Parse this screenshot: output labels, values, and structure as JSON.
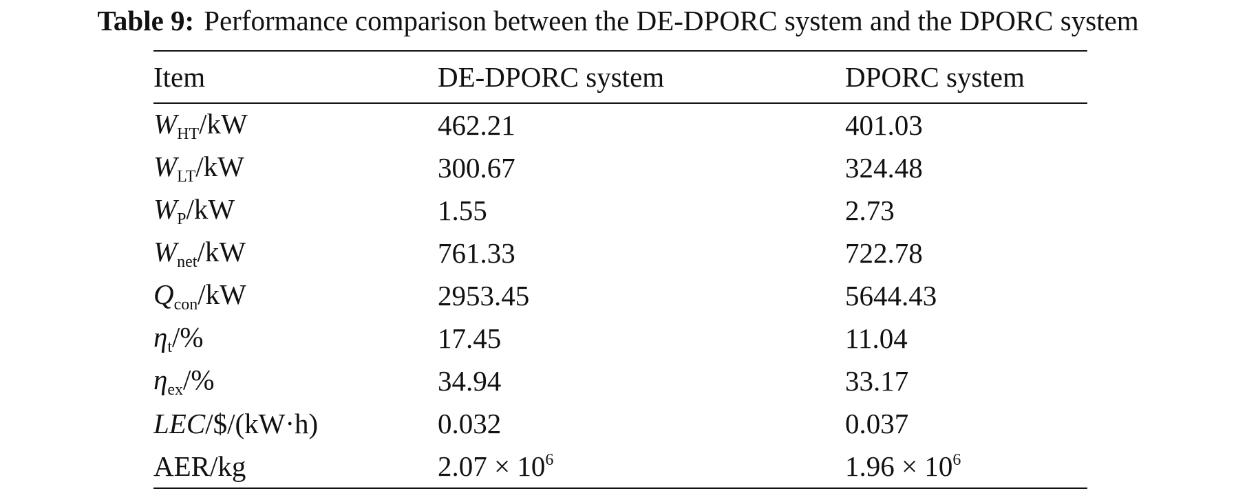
{
  "caption": {
    "label": "Table 9:",
    "text": "Performance comparison between the DE-DPORC system and the DPORC system"
  },
  "table": {
    "header": [
      "Item",
      "DE-DPORC system",
      "DPORC system"
    ],
    "rows": [
      {
        "item": {
          "symbol": "W",
          "sub": "HT",
          "unit": "/kW"
        },
        "values": [
          "462.21",
          "401.03"
        ]
      },
      {
        "item": {
          "symbol": "W",
          "sub": "LT",
          "unit": "/kW"
        },
        "values": [
          "300.67",
          "324.48"
        ]
      },
      {
        "item": {
          "symbol": "W",
          "sub": "P",
          "unit": "/kW"
        },
        "values": [
          "1.55",
          "2.73"
        ]
      },
      {
        "item": {
          "symbol": "W",
          "sub": "net",
          "unit": "/kW"
        },
        "values": [
          "761.33",
          "722.78"
        ]
      },
      {
        "item": {
          "symbol": "Q",
          "sub": "con",
          "unit": "/kW"
        },
        "values": [
          "2953.45",
          "5644.43"
        ]
      },
      {
        "item": {
          "symbol": "η",
          "sub": "t",
          "unit": "/%"
        },
        "values": [
          "17.45",
          "11.04"
        ]
      },
      {
        "item": {
          "symbol": "η",
          "sub": "ex",
          "unit": "/%"
        },
        "values": [
          "34.94",
          "33.17"
        ]
      },
      {
        "item": {
          "symbol": "LEC",
          "unit": "/$/(kW·h)"
        },
        "values": [
          "0.032",
          "0.037"
        ]
      },
      {
        "item": {
          "label": "AER/kg"
        },
        "values": [
          {
            "base": "2.07 × 10",
            "sup": "6"
          },
          {
            "base": "1.96 × 10",
            "sup": "6"
          }
        ]
      }
    ]
  }
}
